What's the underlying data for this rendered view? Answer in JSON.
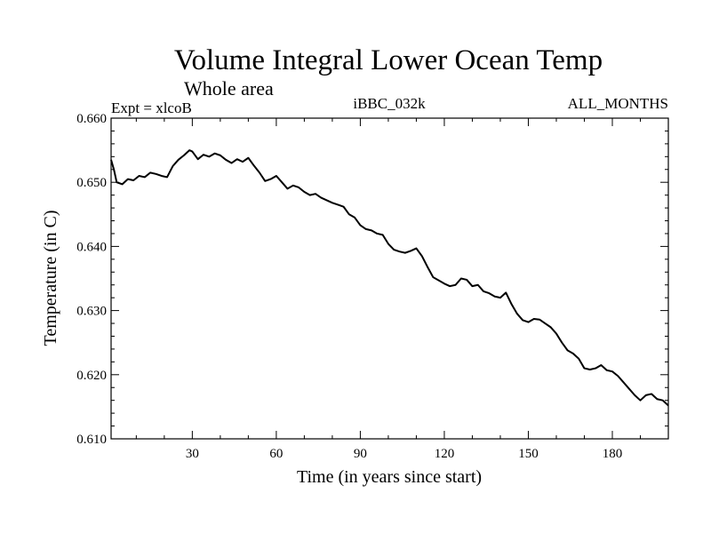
{
  "chart_data": {
    "type": "line",
    "title": "Volume Integral Lower Ocean Temp",
    "subtitle": "Whole area",
    "left_string": "Expt = xlcoB",
    "center_string": "iBBC_032k",
    "right_string": "ALL_MONTHS",
    "xlabel": "Time (in years since start)",
    "ylabel": "Temperature (in C)",
    "xlim": [
      1,
      200
    ],
    "ylim": [
      0.61,
      0.66
    ],
    "x_ticks": [
      30,
      60,
      90,
      120,
      150,
      180
    ],
    "x_tick_labels": [
      "30",
      "60",
      "90",
      "120",
      "150",
      "180"
    ],
    "y_ticks": [
      0.61,
      0.62,
      0.63,
      0.64,
      0.65,
      0.66
    ],
    "y_tick_labels": [
      "0.610",
      "0.620",
      "0.630",
      "0.640",
      "0.650",
      "0.660"
    ],
    "grid": false,
    "series": [
      {
        "name": "Volume Integral Lower Ocean Temp",
        "color": "#000000",
        "x": [
          1,
          2,
          3,
          5,
          7,
          9,
          11,
          13,
          15,
          17,
          19,
          21,
          23,
          25,
          27,
          29,
          30,
          32,
          34,
          36,
          38,
          40,
          42,
          44,
          46,
          48,
          50,
          52,
          54,
          56,
          58,
          60,
          62,
          64,
          66,
          68,
          70,
          72,
          74,
          76,
          78,
          80,
          82,
          84,
          86,
          88,
          90,
          92,
          94,
          96,
          98,
          100,
          102,
          104,
          106,
          108,
          110,
          112,
          114,
          116,
          118,
          120,
          122,
          124,
          126,
          128,
          130,
          132,
          134,
          136,
          138,
          140,
          142,
          144,
          146,
          148,
          150,
          152,
          154,
          156,
          158,
          160,
          162,
          164,
          166,
          168,
          170,
          172,
          174,
          176,
          178,
          180,
          182,
          184,
          186,
          188,
          190,
          192,
          194,
          196,
          198,
          200
        ],
        "values": [
          0.6535,
          0.652,
          0.65,
          0.6497,
          0.6505,
          0.6503,
          0.651,
          0.6508,
          0.6515,
          0.6513,
          0.651,
          0.6508,
          0.6525,
          0.6535,
          0.6542,
          0.655,
          0.6548,
          0.6536,
          0.6543,
          0.654,
          0.6545,
          0.6542,
          0.6535,
          0.653,
          0.6536,
          0.6532,
          0.6538,
          0.6526,
          0.6515,
          0.6502,
          0.6505,
          0.651,
          0.65,
          0.649,
          0.6495,
          0.6492,
          0.6485,
          0.648,
          0.6482,
          0.6476,
          0.6472,
          0.6468,
          0.6465,
          0.6462,
          0.645,
          0.6445,
          0.6433,
          0.6427,
          0.6425,
          0.642,
          0.6418,
          0.6404,
          0.6395,
          0.6392,
          0.639,
          0.6393,
          0.6397,
          0.6385,
          0.6368,
          0.6352,
          0.6347,
          0.6342,
          0.6338,
          0.634,
          0.635,
          0.6348,
          0.6338,
          0.634,
          0.633,
          0.6327,
          0.6322,
          0.632,
          0.6328,
          0.631,
          0.6295,
          0.6285,
          0.6282,
          0.6287,
          0.6286,
          0.628,
          0.6274,
          0.6264,
          0.625,
          0.6238,
          0.6233,
          0.6225,
          0.621,
          0.6208,
          0.621,
          0.6215,
          0.6207,
          0.6205,
          0.6198,
          0.6188,
          0.6178,
          0.6168,
          0.616,
          0.6168,
          0.617,
          0.6162,
          0.616,
          0.6152
        ]
      }
    ]
  }
}
